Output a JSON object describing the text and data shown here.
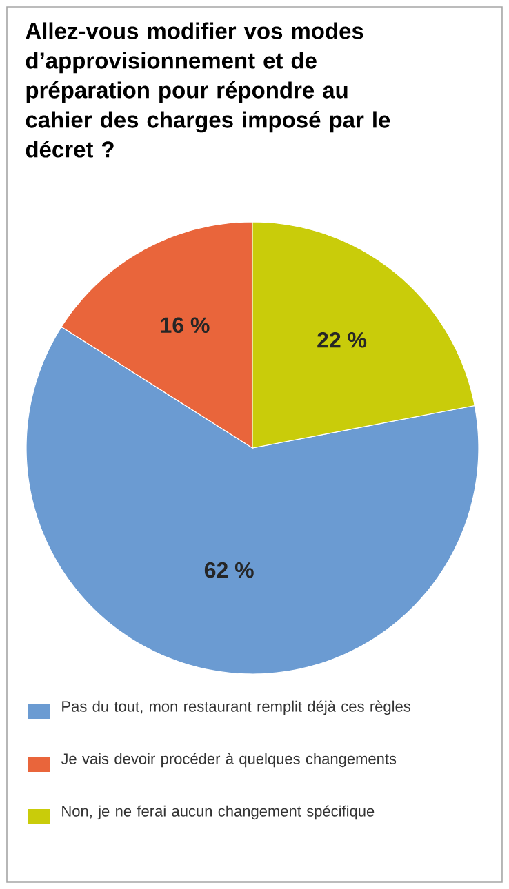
{
  "chart_data": {
    "type": "pie",
    "title": "Allez-vous modifier vos modes d’approvisionnement et de préparation pour répondre au cahier des charges imposé par le décret ?",
    "categories": [
      "Pas du tout, mon restaurant remplit déjà ces règles",
      "Je vais devoir procéder à quelques changements",
      "Non, je ne ferai aucun changement spécifique"
    ],
    "values": [
      62,
      16,
      22
    ],
    "value_labels": [
      "62 %",
      "16 %",
      "22 %"
    ],
    "colors": [
      "#6b9bd2",
      "#e9653b",
      "#c9cc0a"
    ],
    "legend": "bottom"
  }
}
